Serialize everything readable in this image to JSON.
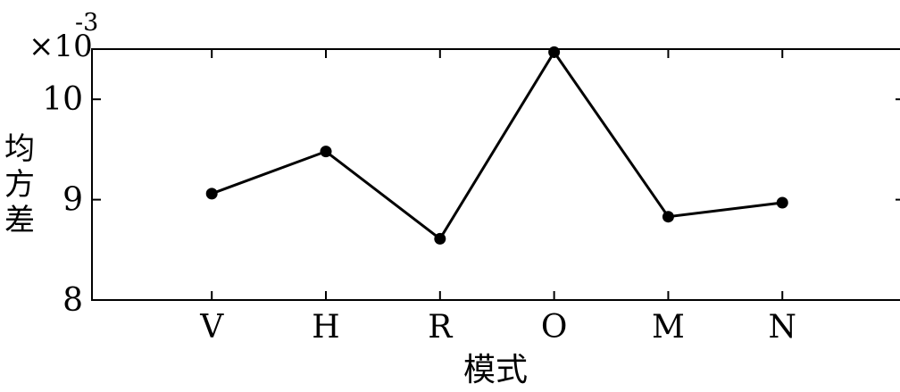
{
  "chart_data": {
    "type": "line",
    "categories": [
      "V",
      "H",
      "R",
      "O",
      "M",
      "N"
    ],
    "x_positions": [
      1,
      2,
      3,
      4,
      5,
      6
    ],
    "xlim": [
      -0.05,
      7.07
    ],
    "ylim": [
      8,
      10.5
    ],
    "y_ticks": [
      "8",
      "9",
      "10"
    ],
    "y_tick_values": [
      8,
      9,
      10
    ],
    "exponent_label": "×10",
    "exponent_value": "-3",
    "xlabel": "模式",
    "ylabel": "均方差",
    "series": [
      {
        "values": [
          9.06,
          9.48,
          8.61,
          10.47,
          8.83,
          8.97
        ]
      }
    ],
    "grid": false,
    "legend": "none",
    "line_color": "#000000",
    "marker_color": "#000000"
  }
}
